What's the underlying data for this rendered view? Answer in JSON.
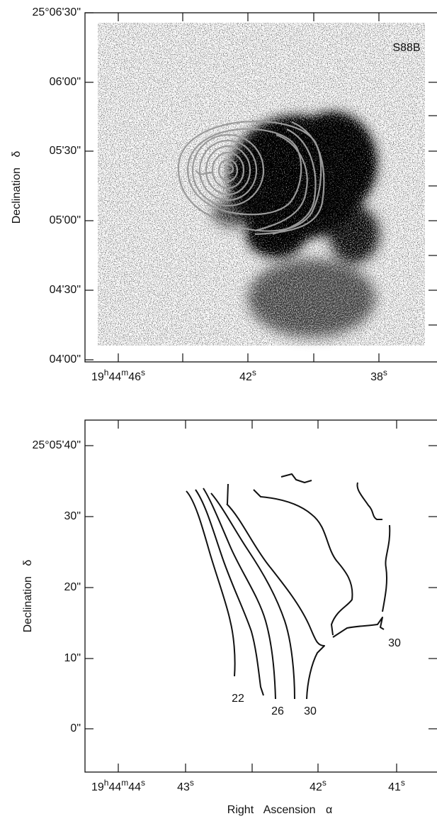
{
  "panels": [
    {
      "label": "S88B",
      "y_axis_label": "Declination δ",
      "yticks": [
        "25°06'30\"",
        "06'00\"",
        "05'30\"",
        "05'00\"",
        "04'30\"",
        "04'00\""
      ],
      "xticks": [
        [
          "19",
          "h",
          "44",
          "m",
          "46",
          "s"
        ],
        [
          "42",
          "s"
        ],
        [
          "38",
          "s"
        ]
      ]
    },
    {
      "y_axis_label": "Declination δ",
      "x_axis_label": "Right Ascension α",
      "yticks": [
        "25°05'40\"",
        "30\"",
        "20\"",
        "10\"",
        "0\""
      ],
      "xticks": [
        [
          "19",
          "h",
          "44",
          "m",
          "44",
          "s"
        ],
        [
          "43",
          "s"
        ],
        [
          "42",
          "s"
        ],
        [
          "41",
          "s"
        ]
      ],
      "contour_labels": [
        "22",
        "26",
        "30",
        "30"
      ]
    }
  ]
}
